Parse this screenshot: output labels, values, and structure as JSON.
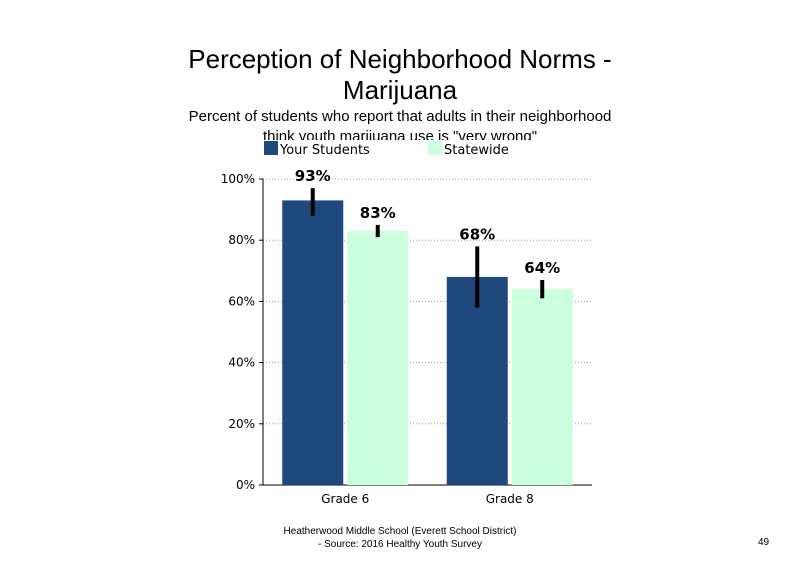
{
  "slide": {
    "title_line1": "Perception of Neighborhood Norms -",
    "title_line2": "Marijuana",
    "subtitle_line1": "Percent of students who report that adults in their neighborhood",
    "subtitle_line2": "think youth marijuana use is \"very wrong\"",
    "footer_line1": "Heatherwood Middle School (Everett School District)",
    "footer_line2": "- Source: 2016 Healthy  Youth Survey",
    "page_number": "49"
  },
  "chart_data": {
    "type": "bar",
    "categories": [
      "Grade 6",
      "Grade 8"
    ],
    "series": [
      {
        "name": "Your Students",
        "color": "#1f497d",
        "values": [
          93,
          68
        ],
        "labels": [
          "93%",
          "68%"
        ],
        "error_low": [
          88,
          58
        ],
        "error_high": [
          97,
          78
        ]
      },
      {
        "name": "Statewide",
        "color": "#ccffdd",
        "values": [
          83,
          64
        ],
        "labels": [
          "83%",
          "64%"
        ],
        "error_low": [
          81,
          61
        ],
        "error_high": [
          85,
          67
        ]
      }
    ],
    "ylim": [
      0,
      100
    ],
    "y_ticks": [
      0,
      20,
      40,
      60,
      80,
      100
    ],
    "y_tick_labels": [
      "0%",
      "20%",
      "40%",
      "60%",
      "80%",
      "100%"
    ],
    "grid": "dotted horizontal at 20% intervals",
    "legend_position": "top"
  }
}
